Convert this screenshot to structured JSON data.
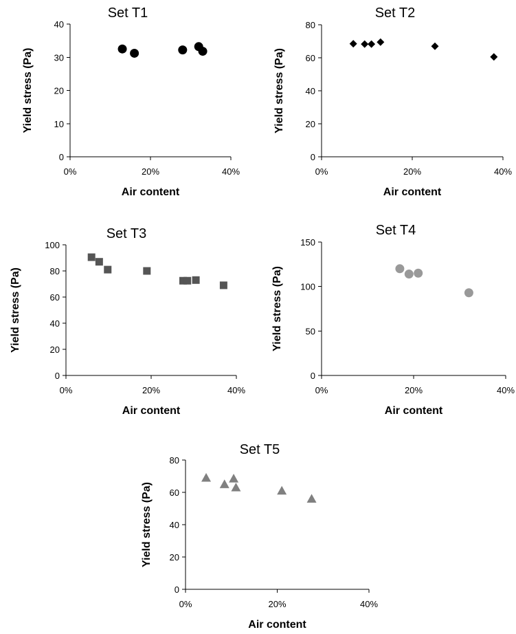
{
  "chart_data": [
    {
      "type": "scatter",
      "title": "Set T1",
      "xlabel": "Air content",
      "ylabel": "Yield stress (Pa)",
      "xlim": [
        0,
        0.4
      ],
      "ylim": [
        0,
        40
      ],
      "xticks": [
        "0%",
        "20%",
        "40%"
      ],
      "yticks": [
        "0",
        "10",
        "20",
        "30",
        "40"
      ],
      "grid": false,
      "marker": "circle",
      "color": "#000000",
      "series": [
        {
          "x": [
            0.13,
            0.16,
            0.28,
            0.32,
            0.33
          ],
          "y": [
            32.5,
            31.2,
            32.2,
            33.2,
            31.8
          ]
        }
      ]
    },
    {
      "type": "scatter",
      "title": "Set T2",
      "xlabel": "Air content",
      "ylabel": "Yield stress (Pa)",
      "xlim": [
        0,
        0.4
      ],
      "ylim": [
        0,
        80
      ],
      "xticks": [
        "0%",
        "20%",
        "40%"
      ],
      "yticks": [
        "0",
        "20",
        "40",
        "60",
        "80"
      ],
      "grid": false,
      "marker": "diamond",
      "color": "#000000",
      "series": [
        {
          "x": [
            0.07,
            0.095,
            0.11,
            0.13,
            0.25,
            0.38
          ],
          "y": [
            68.5,
            68.3,
            68.3,
            69.5,
            67,
            60.5
          ]
        }
      ]
    },
    {
      "type": "scatter",
      "title": "Set T3",
      "xlabel": "Air content",
      "ylabel": "Yield stress (Pa)",
      "xlim": [
        0,
        0.4
      ],
      "ylim": [
        0,
        100
      ],
      "xticks": [
        "0%",
        "20%",
        "40%"
      ],
      "yticks": [
        "0",
        "20",
        "40",
        "60",
        "80",
        "100"
      ],
      "grid": false,
      "marker": "square",
      "color": "#555555",
      "series": [
        {
          "x": [
            0.06,
            0.078,
            0.098,
            0.19,
            0.275,
            0.285,
            0.305,
            0.37
          ],
          "y": [
            90.5,
            87,
            81,
            80,
            72.5,
            72.5,
            73,
            69
          ]
        }
      ]
    },
    {
      "type": "scatter",
      "title": "Set T4",
      "xlabel": "Air content",
      "ylabel": "Yield stress (Pa)",
      "xlim": [
        0,
        0.4
      ],
      "ylim": [
        0,
        150
      ],
      "xticks": [
        "0%",
        "20%",
        "40%"
      ],
      "yticks": [
        "0",
        "50",
        "100",
        "150"
      ],
      "grid": false,
      "marker": "circle",
      "color": "#999999",
      "series": [
        {
          "x": [
            0.17,
            0.19,
            0.21,
            0.32
          ],
          "y": [
            120,
            114,
            115,
            93
          ]
        }
      ]
    },
    {
      "type": "scatter",
      "title": "Set T5",
      "xlabel": "Air content",
      "ylabel": "Yield stress (Pa)",
      "xlim": [
        0,
        0.4
      ],
      "ylim": [
        0,
        80
      ],
      "xticks": [
        "0%",
        "20%",
        "40%"
      ],
      "yticks": [
        "0",
        "20",
        "40",
        "60",
        "80"
      ],
      "grid": false,
      "marker": "triangle",
      "color": "#808080",
      "series": [
        {
          "x": [
            0.045,
            0.085,
            0.105,
            0.11,
            0.21,
            0.275
          ],
          "y": [
            69,
            65,
            68.5,
            63,
            61,
            56
          ]
        }
      ]
    }
  ]
}
